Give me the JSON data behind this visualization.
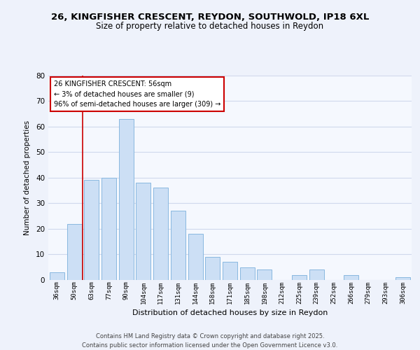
{
  "title_line1": "26, KINGFISHER CRESCENT, REYDON, SOUTHWOLD, IP18 6XL",
  "title_line2": "Size of property relative to detached houses in Reydon",
  "xlabel": "Distribution of detached houses by size in Reydon",
  "ylabel": "Number of detached properties",
  "categories": [
    "36sqm",
    "50sqm",
    "63sqm",
    "77sqm",
    "90sqm",
    "104sqm",
    "117sqm",
    "131sqm",
    "144sqm",
    "158sqm",
    "171sqm",
    "185sqm",
    "198sqm",
    "212sqm",
    "225sqm",
    "239sqm",
    "252sqm",
    "266sqm",
    "279sqm",
    "293sqm",
    "306sqm"
  ],
  "values": [
    3,
    22,
    39,
    40,
    63,
    38,
    36,
    27,
    18,
    9,
    7,
    5,
    4,
    0,
    2,
    4,
    0,
    2,
    0,
    0,
    1
  ],
  "bar_color": "#ccdff5",
  "bar_edge_color": "#89b8e0",
  "ylim": [
    0,
    80
  ],
  "yticks": [
    0,
    10,
    20,
    30,
    40,
    50,
    60,
    70,
    80
  ],
  "vline_color": "#cc0000",
  "vline_x": 1.5,
  "annotation_title": "26 KINGFISHER CRESCENT: 56sqm",
  "annotation_line1": "← 3% of detached houses are smaller (9)",
  "annotation_line2": "96% of semi-detached houses are larger (309) →",
  "annotation_box_color": "#ffffff",
  "annotation_border_color": "#cc0000",
  "footer_line1": "Contains HM Land Registry data © Crown copyright and database right 2025.",
  "footer_line2": "Contains public sector information licensed under the Open Government Licence v3.0.",
  "bg_color": "#eef2fb",
  "plot_bg_color": "#f5f8fe",
  "grid_color": "#d0d8ec"
}
